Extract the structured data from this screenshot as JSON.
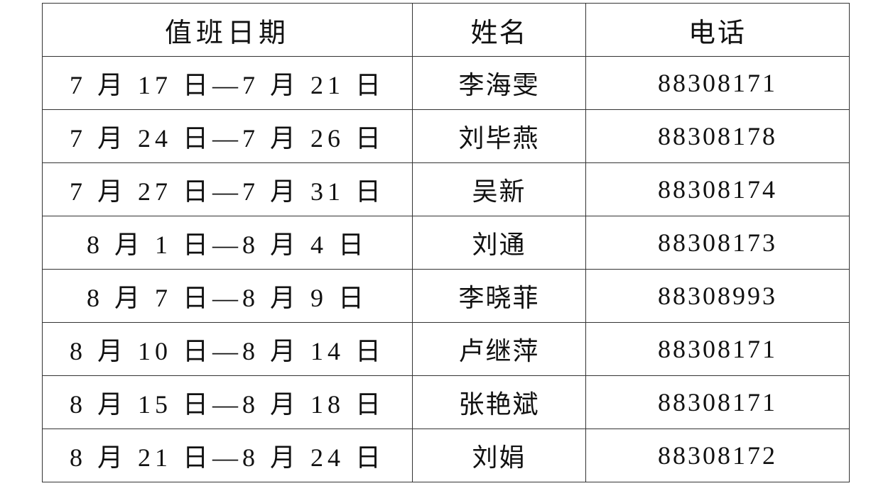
{
  "table": {
    "headers": [
      "值班日期",
      "姓名",
      "电话"
    ],
    "rows": [
      {
        "date": "7 月 17 日—7 月 21 日",
        "name": "李海雯",
        "phone": "88308171"
      },
      {
        "date": "7 月 24 日—7 月 26 日",
        "name": "刘毕燕",
        "phone": "88308178"
      },
      {
        "date": "7 月 27 日—7 月 31 日",
        "name": "吴新",
        "phone": "88308174"
      },
      {
        "date": "8 月 1 日—8 月 4 日",
        "name": "刘通",
        "phone": "88308173"
      },
      {
        "date": "8 月 7 日—8 月 9 日",
        "name": "李晓菲",
        "phone": "88308993"
      },
      {
        "date": "8 月 10 日—8 月 14 日",
        "name": "卢继萍",
        "phone": "88308171"
      },
      {
        "date": "8 月 15 日—8 月 18 日",
        "name": "张艳斌",
        "phone": "88308171"
      },
      {
        "date": "8 月 21 日—8 月 24 日",
        "name": "刘娟",
        "phone": "88308172"
      }
    ]
  }
}
